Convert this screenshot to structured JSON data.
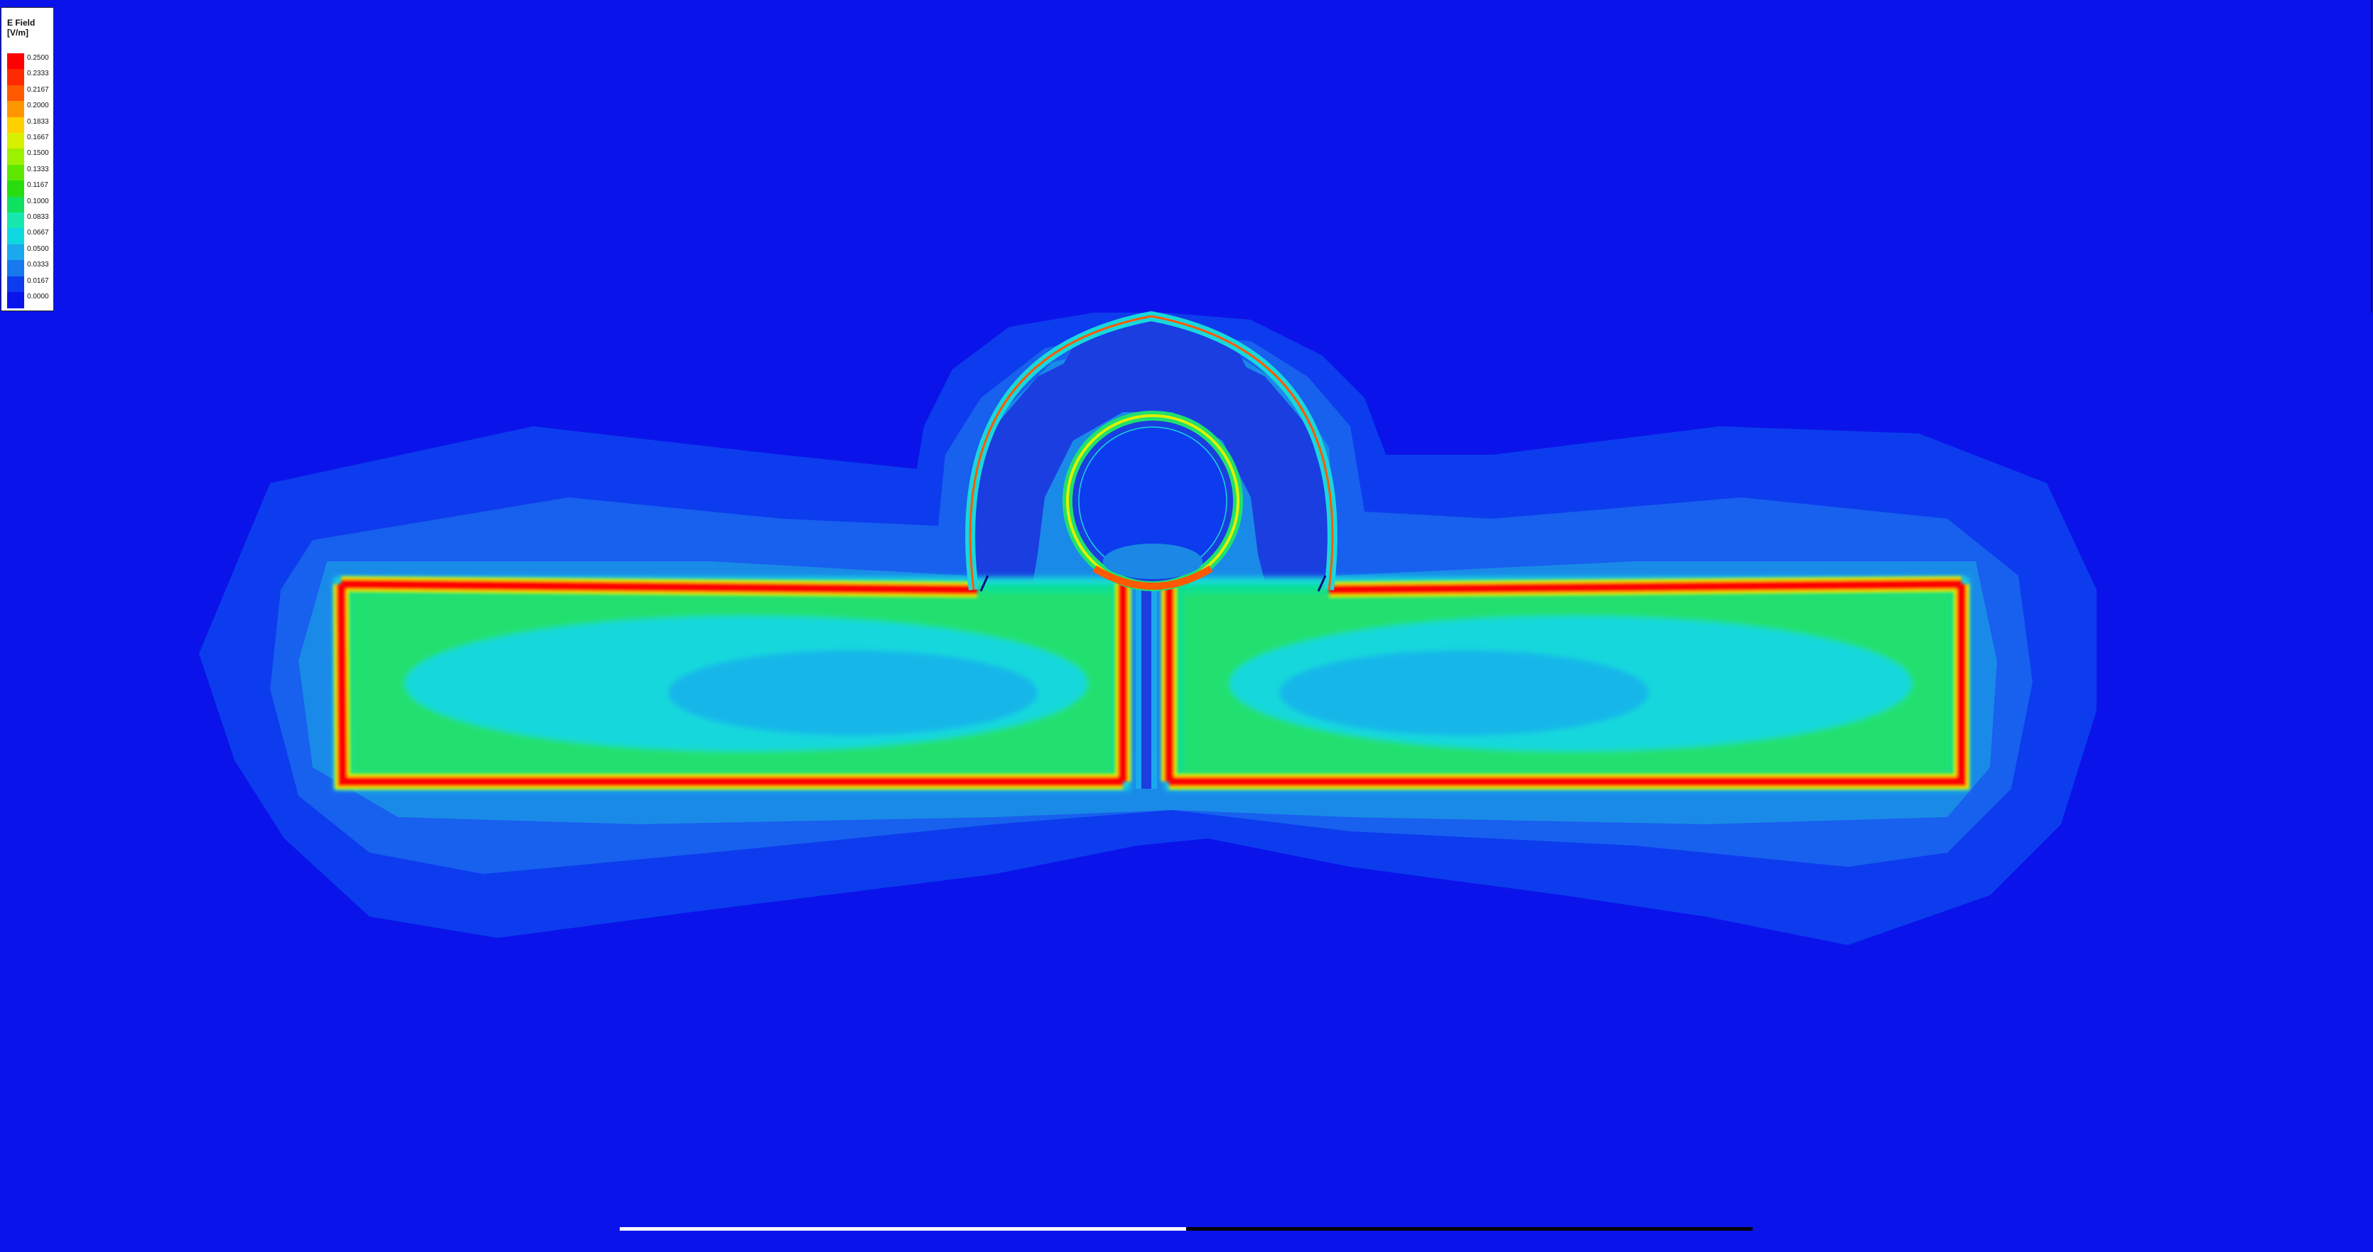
{
  "legend": {
    "title": "E Field",
    "unit": "[V/m]",
    "entries": [
      {
        "label": "0.2500",
        "color": "#ff0000"
      },
      {
        "label": "0.2333",
        "color": "#ff2a00"
      },
      {
        "label": "0.2167",
        "color": "#ff5a00"
      },
      {
        "label": "0.2000",
        "color": "#ff9600"
      },
      {
        "label": "0.1833",
        "color": "#ffd000"
      },
      {
        "label": "0.1667",
        "color": "#d8f000"
      },
      {
        "label": "0.1500",
        "color": "#9cf000"
      },
      {
        "label": "0.1333",
        "color": "#5ee800"
      },
      {
        "label": "0.1167",
        "color": "#28dc10"
      },
      {
        "label": "0.1000",
        "color": "#10e060"
      },
      {
        "label": "0.0833",
        "color": "#18e8b0"
      },
      {
        "label": "0.0667",
        "color": "#10d8e0"
      },
      {
        "label": "0.0500",
        "color": "#1aa8ee"
      },
      {
        "label": "0.0333",
        "color": "#1878ee"
      },
      {
        "label": "0.0167",
        "color": "#0c3cee"
      },
      {
        "label": "0.0000",
        "color": "#0a14ea"
      }
    ]
  },
  "colors": {
    "background": "#0a14ea",
    "outer_halo": "#0c3cee",
    "halo_2": "#1860ee",
    "halo_3": "#1a8ae8",
    "inner_glow": "#1aa8ee",
    "cyan": "#18d8dc",
    "green": "#20e070",
    "yellow": "#e0f000",
    "red": "#ff0000",
    "dark_band": "#1a3ee0"
  }
}
